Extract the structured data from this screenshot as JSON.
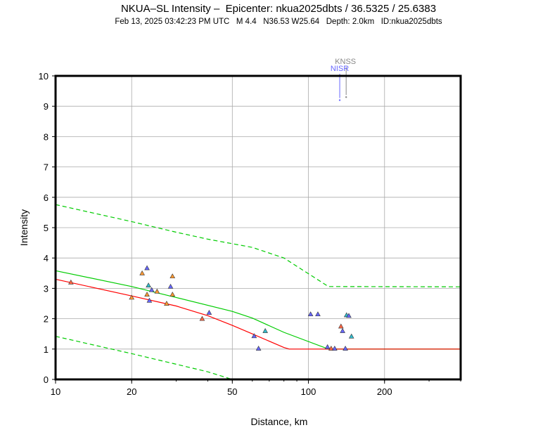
{
  "header": {
    "title": "NKUA–SL Intensity –  Epicenter: nkua2025dbts / 36.5325 / 25.6383",
    "subtitle": "Feb 13, 2025 03:42:23 PM UTC   M 4.4   N36.53 W25.64   Depth: 2.0km   ID:nkua2025dbts"
  },
  "colors": {
    "median": "#00cc00",
    "bounds": "#00cc00",
    "observed_fit": "#ff0000",
    "grid": "#aaaaaa",
    "axes": "#000000"
  },
  "chart_data": {
    "type": "scatter",
    "title": "NKUA–SL Intensity –  Epicenter: nkua2025dbts / 36.5325 / 25.6383",
    "subtitle": "Feb 13, 2025 03:42:23 PM UTC   M 4.4   N36.53 W25.64   Depth: 2.0km   ID:nkua2025dbts",
    "xlabel": "Distance, km",
    "ylabel": "Intensity",
    "xscale": "log",
    "xlim": [
      10,
      400
    ],
    "ylim": [
      0,
      10
    ],
    "xticks": [
      10,
      20,
      50,
      100,
      200
    ],
    "yticks": [
      0,
      1,
      2,
      3,
      4,
      5,
      6,
      7,
      8,
      9,
      10
    ],
    "grid": true,
    "curves": [
      {
        "style": "solid",
        "color": "#00cc00",
        "x": [
          10,
          20,
          30,
          50,
          60,
          80,
          120,
          400
        ],
        "y": [
          3.58,
          3.06,
          2.7,
          2.24,
          2.02,
          1.55,
          1.0,
          1.0
        ]
      },
      {
        "style": "dashed",
        "color": "#00cc00",
        "x": [
          10,
          20,
          30,
          40,
          60,
          80,
          120,
          400
        ],
        "y": [
          5.76,
          5.2,
          4.85,
          4.62,
          4.35,
          4.0,
          3.06,
          3.05
        ]
      },
      {
        "style": "dashed",
        "color": "#00cc00",
        "x": [
          10,
          20,
          30,
          40,
          50
        ],
        "y": [
          1.42,
          0.85,
          0.5,
          0.25,
          0.0
        ]
      },
      {
        "style": "solid",
        "color": "#ff0000",
        "x": [
          10,
          20,
          30,
          40,
          50,
          60,
          80,
          84,
          120,
          400
        ],
        "y": [
          3.3,
          2.75,
          2.42,
          2.1,
          1.78,
          1.5,
          1.05,
          1.0,
          1.0,
          1.0
        ]
      }
    ],
    "points": [
      {
        "x": 11.5,
        "y": 3.2,
        "color": "#ff6644"
      },
      {
        "x": 20,
        "y": 2.7,
        "color": "#ff9933"
      },
      {
        "x": 22,
        "y": 3.5,
        "color": "#ff9933"
      },
      {
        "x": 23,
        "y": 3.67,
        "color": "#6666ff"
      },
      {
        "x": 23,
        "y": 2.8,
        "color": "#ff9933"
      },
      {
        "x": 23.3,
        "y": 3.1,
        "color": "#33bbcc"
      },
      {
        "x": 23.5,
        "y": 2.6,
        "color": "#6666ff"
      },
      {
        "x": 24,
        "y": 2.95,
        "color": "#6666ff"
      },
      {
        "x": 25.2,
        "y": 2.9,
        "color": "#ff9933"
      },
      {
        "x": 27.5,
        "y": 2.5,
        "color": "#ff9933"
      },
      {
        "x": 28.5,
        "y": 3.06,
        "color": "#6666ff"
      },
      {
        "x": 29,
        "y": 3.4,
        "color": "#ff9933"
      },
      {
        "x": 29,
        "y": 2.8,
        "color": "#ff9933"
      },
      {
        "x": 38,
        "y": 2.0,
        "color": "#ff6644"
      },
      {
        "x": 40.5,
        "y": 2.2,
        "color": "#6666ff"
      },
      {
        "x": 61,
        "y": 1.43,
        "color": "#6666ff"
      },
      {
        "x": 63.5,
        "y": 1.02,
        "color": "#6666ff"
      },
      {
        "x": 67.5,
        "y": 1.6,
        "color": "#33bbcc"
      },
      {
        "x": 102,
        "y": 2.15,
        "color": "#6666ff"
      },
      {
        "x": 109,
        "y": 2.15,
        "color": "#6666ff"
      },
      {
        "x": 119,
        "y": 1.07,
        "color": "#6666ff"
      },
      {
        "x": 123,
        "y": 1.02,
        "color": "#ff6644"
      },
      {
        "x": 127,
        "y": 1.02,
        "color": "#6666ff"
      },
      {
        "x": 134.5,
        "y": 1.75,
        "color": "#ff6644"
      },
      {
        "x": 136.5,
        "y": 1.6,
        "color": "#6666ff"
      },
      {
        "x": 140,
        "y": 1.02,
        "color": "#6666ff"
      },
      {
        "x": 141.5,
        "y": 2.12,
        "color": "#33bbcc"
      },
      {
        "x": 144.5,
        "y": 2.1,
        "color": "#6666ff"
      },
      {
        "x": 148,
        "y": 1.42,
        "color": "#33bbcc"
      }
    ],
    "annotations": [
      {
        "text": "KNSS",
        "x": 141,
        "y": 9.3,
        "color": "#888888"
      },
      {
        "text": "NISR",
        "x": 133,
        "y": 9.2,
        "color": "#6666ff"
      }
    ]
  }
}
